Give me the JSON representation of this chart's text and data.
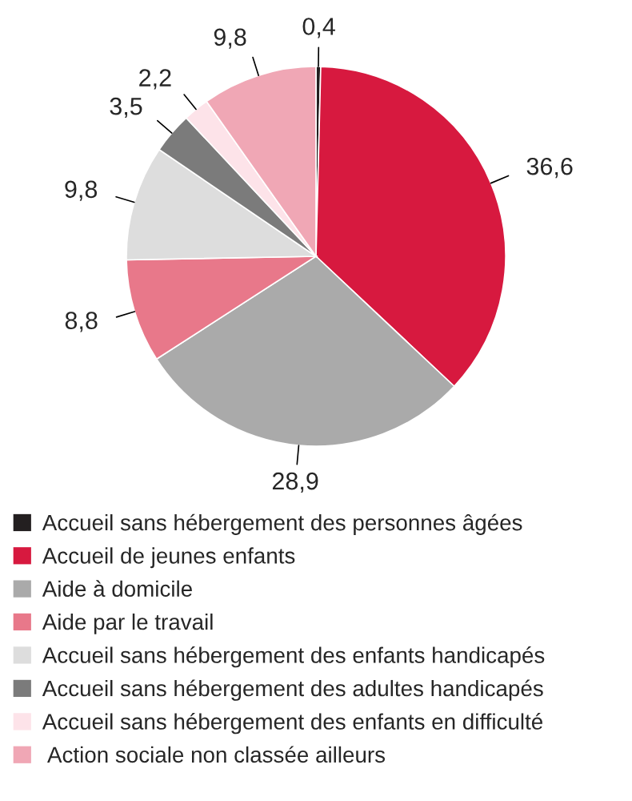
{
  "chart_data": {
    "type": "pie",
    "categories": [
      "Accueil sans hébergement des personnes âgées",
      "Accueil de jeunes enfants",
      "Aide à domicile",
      "Aide par le travail",
      "Accueil sans hébergement des enfants handicapés",
      "Accueil sans hébergement des adultes handicapés",
      "Accueil sans hébergement des enfants en difficulté",
      " Action sociale non classée ailleurs"
    ],
    "values": [
      0.4,
      36.6,
      28.9,
      8.8,
      9.8,
      3.5,
      2.2,
      9.8
    ],
    "value_labels": [
      "0,4",
      "36,6",
      "28,9",
      "8,8",
      "9,8",
      "3,5",
      "2,2",
      "9,8"
    ],
    "colors": [
      "#231f20",
      "#d7193f",
      "#aaaaaa",
      "#e8788a",
      "#dddddd",
      "#7b7b7b",
      "#fde3e9",
      "#f0a7b5"
    ],
    "legend": "bottom"
  }
}
